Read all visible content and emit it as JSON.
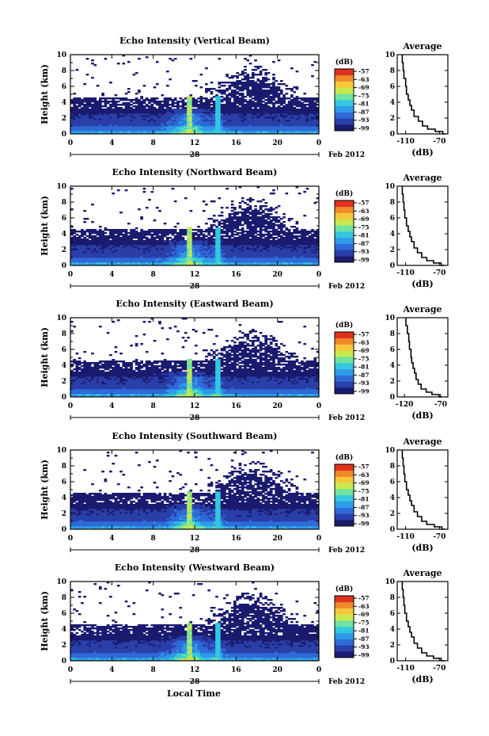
{
  "figure": {
    "date_label": "Feb 2012",
    "day_label": "28",
    "xlabel_bottom": "Local Time",
    "colorbar_unit": "(dB)",
    "colorbar_ticks": [
      "-57",
      "-63",
      "-69",
      "-75",
      "-81",
      "-87",
      "-93",
      "-99"
    ],
    "colors": [
      "#1a1a6e",
      "#2a3fa8",
      "#2f6ad8",
      "#2f9be8",
      "#33c8e0",
      "#6fe3a0",
      "#c8e850",
      "#f5c83a",
      "#f08a2a",
      "#e03020"
    ]
  },
  "chart_data": [
    {
      "type": "heatmap",
      "title": "Echo Intensity (Vertical Beam)",
      "ylabel": "Height (km)",
      "x_ticks": [
        "0",
        "4",
        "8",
        "12",
        "16",
        "20",
        "0"
      ],
      "y_ticks": [
        "0",
        "2",
        "4",
        "6",
        "8",
        "10"
      ],
      "xlim": [
        0,
        24
      ],
      "ylim": [
        0,
        10
      ],
      "profile": {
        "title": "Average",
        "xlabel": "(dB)",
        "x_ticks": [
          "-110",
          "-70"
        ],
        "xlim": [
          -120,
          -60
        ],
        "points": [
          [
            -63,
            0
          ],
          [
            -66,
            0.3
          ],
          [
            -75,
            0.6
          ],
          [
            -84,
            1.0
          ],
          [
            -90,
            1.6
          ],
          [
            -95,
            2.2
          ],
          [
            -100,
            3.0
          ],
          [
            -103,
            3.6
          ],
          [
            -105,
            4.3
          ],
          [
            -107,
            5.0
          ],
          [
            -109,
            6.0
          ],
          [
            -110,
            7.0
          ],
          [
            -112,
            8.0
          ],
          [
            -113,
            9.0
          ],
          [
            -114,
            10
          ]
        ]
      }
    },
    {
      "type": "heatmap",
      "title": "Echo Intensity (Northward Beam)",
      "ylabel": "Height (km)",
      "x_ticks": [
        "0",
        "4",
        "8",
        "12",
        "16",
        "20",
        "0"
      ],
      "y_ticks": [
        "0",
        "2",
        "4",
        "6",
        "8",
        "10"
      ],
      "xlim": [
        0,
        24
      ],
      "ylim": [
        0,
        10
      ],
      "profile": {
        "title": "Average",
        "xlabel": "(dB)",
        "x_ticks": [
          "-110",
          "-70"
        ],
        "xlim": [
          -120,
          -60
        ],
        "points": [
          [
            -64,
            0
          ],
          [
            -68,
            0.3
          ],
          [
            -77,
            0.6
          ],
          [
            -85,
            1.0
          ],
          [
            -91,
            1.6
          ],
          [
            -96,
            2.2
          ],
          [
            -100,
            3.0
          ],
          [
            -103,
            3.6
          ],
          [
            -105,
            4.3
          ],
          [
            -107,
            5.0
          ],
          [
            -109,
            6.0
          ],
          [
            -111,
            7.0
          ],
          [
            -112,
            8.0
          ],
          [
            -113,
            9.0
          ],
          [
            -114,
            10
          ]
        ]
      }
    },
    {
      "type": "heatmap",
      "title": "Echo Intensity (Eastward Beam)",
      "ylabel": "Height (km)",
      "x_ticks": [
        "0",
        "4",
        "8",
        "12",
        "16",
        "20",
        "0"
      ],
      "y_ticks": [
        "0",
        "2",
        "4",
        "6",
        "8",
        "10"
      ],
      "xlim": [
        0,
        24
      ],
      "ylim": [
        0,
        10
      ],
      "profile": {
        "title": "Average",
        "xlabel": "(dB)",
        "x_ticks": [
          "-120",
          "-70"
        ],
        "xlim": [
          -130,
          -60
        ],
        "points": [
          [
            -68,
            0
          ],
          [
            -72,
            0.3
          ],
          [
            -82,
            0.6
          ],
          [
            -90,
            1.0
          ],
          [
            -97,
            1.6
          ],
          [
            -101,
            2.2
          ],
          [
            -104,
            3.0
          ],
          [
            -106,
            3.6
          ],
          [
            -108,
            4.3
          ],
          [
            -110,
            5.0
          ],
          [
            -111,
            6.0
          ],
          [
            -113,
            7.0
          ],
          [
            -114,
            8.0
          ],
          [
            -116,
            9.0
          ],
          [
            -118,
            10
          ]
        ]
      }
    },
    {
      "type": "heatmap",
      "title": "Echo Intensity (Southward Beam)",
      "ylabel": "Height (km)",
      "x_ticks": [
        "0",
        "4",
        "8",
        "12",
        "16",
        "20",
        "0"
      ],
      "y_ticks": [
        "0",
        "2",
        "4",
        "6",
        "8",
        "10"
      ],
      "xlim": [
        0,
        24
      ],
      "ylim": [
        0,
        10
      ],
      "profile": {
        "title": "Average",
        "xlabel": "(dB)",
        "x_ticks": [
          "-110",
          "-70"
        ],
        "xlim": [
          -120,
          -60
        ],
        "points": [
          [
            -63,
            0
          ],
          [
            -67,
            0.3
          ],
          [
            -76,
            0.6
          ],
          [
            -85,
            1.0
          ],
          [
            -91,
            1.6
          ],
          [
            -96,
            2.2
          ],
          [
            -100,
            3.0
          ],
          [
            -103,
            3.6
          ],
          [
            -105,
            4.3
          ],
          [
            -107,
            5.0
          ],
          [
            -109,
            6.0
          ],
          [
            -111,
            7.0
          ],
          [
            -112,
            8.0
          ],
          [
            -113,
            9.0
          ],
          [
            -114,
            10
          ]
        ]
      }
    },
    {
      "type": "heatmap",
      "title": "Echo Intensity (Westward Beam)",
      "ylabel": "Height (km)",
      "x_ticks": [
        "0",
        "4",
        "8",
        "12",
        "16",
        "20",
        "0"
      ],
      "y_ticks": [
        "0",
        "2",
        "4",
        "6",
        "8",
        "10"
      ],
      "xlim": [
        0,
        24
      ],
      "ylim": [
        0,
        10
      ],
      "profile": {
        "title": "Average",
        "xlabel": "(dB)",
        "x_ticks": [
          "-110",
          "-70"
        ],
        "xlim": [
          -120,
          -60
        ],
        "points": [
          [
            -64,
            0
          ],
          [
            -68,
            0.3
          ],
          [
            -77,
            0.6
          ],
          [
            -85,
            1.0
          ],
          [
            -91,
            1.6
          ],
          [
            -96,
            2.2
          ],
          [
            -100,
            3.0
          ],
          [
            -103,
            3.6
          ],
          [
            -105,
            4.3
          ],
          [
            -107,
            5.0
          ],
          [
            -109,
            6.0
          ],
          [
            -111,
            7.0
          ],
          [
            -112,
            8.0
          ],
          [
            -113,
            9.0
          ],
          [
            -114,
            10
          ]
        ]
      }
    }
  ]
}
